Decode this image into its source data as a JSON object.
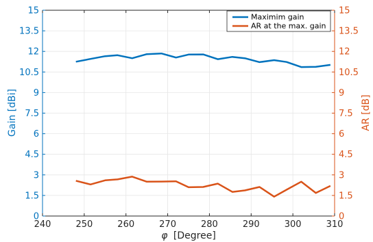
{
  "colors": {
    "left_axis": "#0072BD",
    "right_axis": "#D95319",
    "axis_x": "#262626",
    "grid": "#e6e6e6"
  },
  "chart_data": {
    "type": "line",
    "xlabel_symbol": "φ",
    "xlabel": "[Degree]",
    "ylabel_left": "Gain [dBi]",
    "ylabel_right": "AR [dB]",
    "xlim": [
      240,
      310
    ],
    "x_ticks": [
      "240",
      "250",
      "260",
      "270",
      "280",
      "290",
      "300",
      "310"
    ],
    "ylim_left": [
      0,
      15
    ],
    "ylim_right": [
      0,
      15
    ],
    "y_ticks": [
      "0",
      "1.5",
      "3",
      "4.5",
      "6",
      "7.5",
      "9",
      "10.5",
      "12",
      "13.5",
      "15"
    ],
    "grid": true,
    "legend_position": "top-right",
    "series": [
      {
        "name": "Maximim gain",
        "axis": "left",
        "color": "#0072BD",
        "x": [
          248,
          251.5,
          255,
          258,
          261.5,
          265,
          268.5,
          272,
          275,
          278.5,
          282,
          285.5,
          288.5,
          292,
          295.5,
          298.5,
          302,
          305.5,
          309
        ],
        "y": [
          11.25,
          11.45,
          11.65,
          11.72,
          11.5,
          11.8,
          11.85,
          11.55,
          11.77,
          11.78,
          11.43,
          11.6,
          11.5,
          11.22,
          11.36,
          11.23,
          10.86,
          10.88,
          11.02
        ]
      },
      {
        "name": "AR at the max. gain",
        "axis": "right",
        "color": "#D95319",
        "x": [
          248,
          251.5,
          255,
          258,
          261.5,
          265,
          268.5,
          272,
          275,
          278.5,
          282,
          285.5,
          288.5,
          292,
          295.5,
          298.5,
          302,
          305.5,
          309
        ],
        "y": [
          2.57,
          2.3,
          2.6,
          2.67,
          2.87,
          2.5,
          2.51,
          2.53,
          2.1,
          2.12,
          2.36,
          1.76,
          1.87,
          2.12,
          1.41,
          1.92,
          2.5,
          1.68,
          2.2
        ]
      }
    ]
  }
}
